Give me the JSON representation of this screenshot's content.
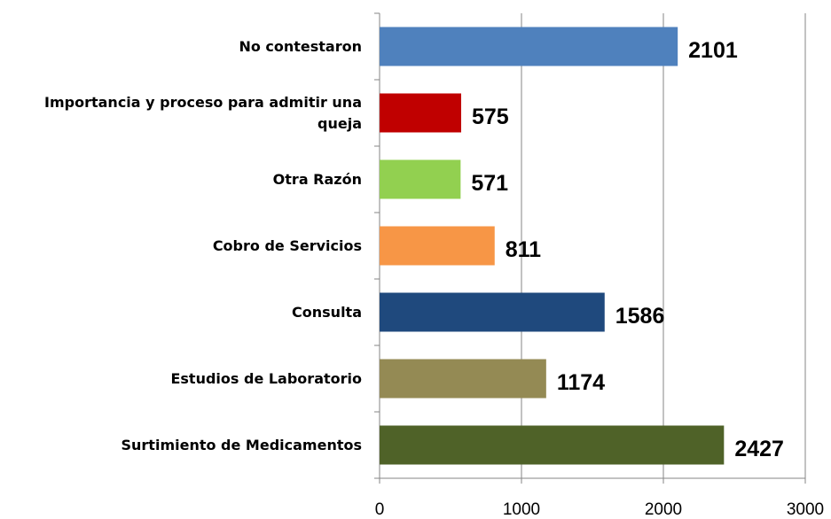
{
  "chart_data": {
    "type": "barh",
    "categories": [
      "No contestaron",
      "Importancia y proceso para admitir una queja",
      "Otra Razón",
      "Cobro de Servicios",
      "Consulta",
      "Estudios de Laboratorio",
      "Surtimiento de Medicamentos"
    ],
    "values": [
      2101,
      575,
      571,
      811,
      1586,
      1174,
      2427
    ],
    "colors": [
      "#4f81bd",
      "#c00000",
      "#92d050",
      "#f79646",
      "#1f497d",
      "#948a54",
      "#4f6228"
    ],
    "xlim": [
      0,
      3000
    ],
    "xticks": [
      0,
      1000,
      2000,
      3000
    ],
    "grid": true
  }
}
